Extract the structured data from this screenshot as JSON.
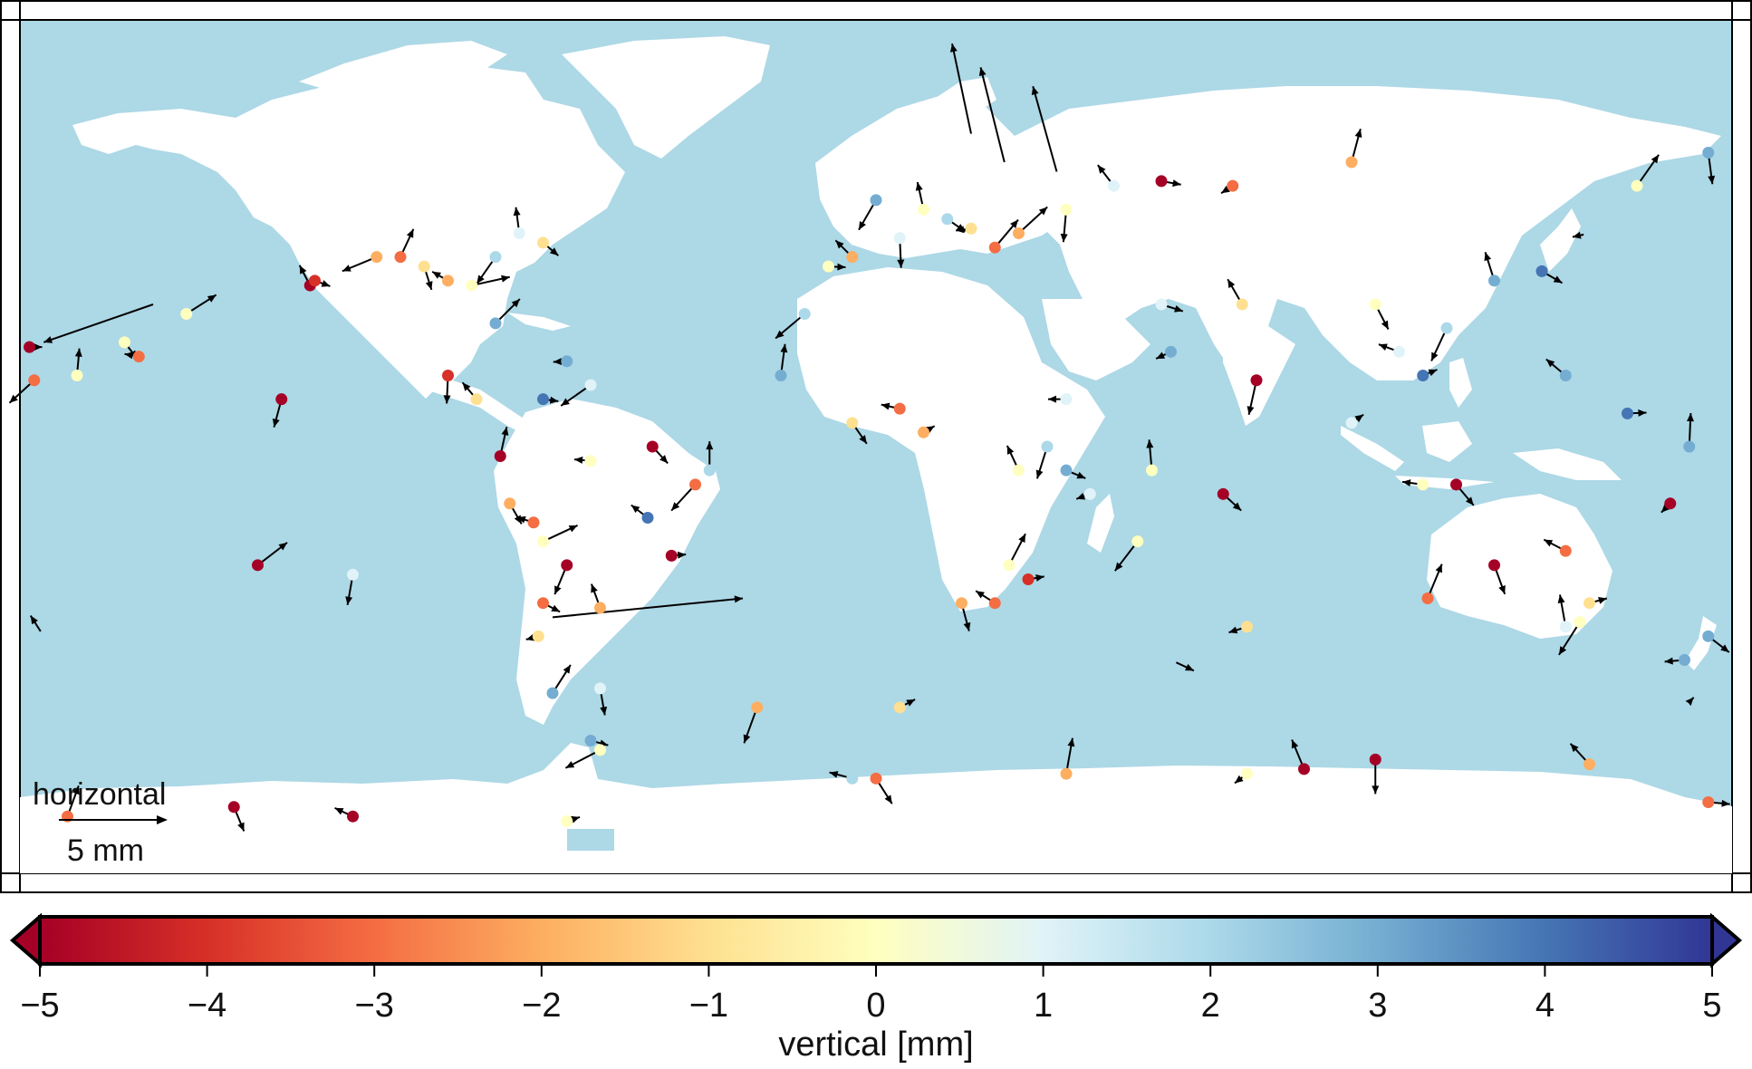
{
  "colors": {
    "ocean": "#add8e6",
    "land": "#ffffff",
    "frame": "#000000",
    "arrow": "#000000",
    "colormap": [
      "#a50026",
      "#d73027",
      "#f46d43",
      "#fdae61",
      "#fee090",
      "#ffffbf",
      "#e0f3f8",
      "#abd9e9",
      "#74add1",
      "#4575b4",
      "#313695"
    ]
  },
  "map": {
    "projection": "equidistant cylindrical",
    "lon_range": [
      -180,
      180
    ],
    "lat_range": [
      -90,
      90
    ],
    "scale_label": "horizontal",
    "scale_value": "5 mm",
    "scale_arrow_mm": 5
  },
  "colorbar": {
    "label": "vertical [mm]",
    "range": [
      -5,
      5
    ],
    "ticks": [
      "−5",
      "−4",
      "−3",
      "−2",
      "−1",
      "0",
      "1",
      "2",
      "3",
      "4",
      "5"
    ],
    "tick_values": [
      -5,
      -4,
      -3,
      -2,
      -1,
      0,
      1,
      2,
      3,
      4,
      5
    ],
    "extend": "both"
  },
  "chart_data": {
    "type": "scatter",
    "description": "GNSS station velocities: colored dots = vertical component, arrows = horizontal component",
    "x_label": "",
    "y_label": "",
    "series": [
      {
        "name": "vertical [mm]",
        "points": [
          [
            -178,
            21,
            -5
          ],
          [
            -177,
            14,
            -3
          ],
          [
            -168,
            15,
            0
          ],
          [
            -158,
            22,
            0
          ],
          [
            -155,
            19,
            -3
          ],
          [
            -145,
            28,
            0
          ],
          [
            -125,
            10,
            -5
          ],
          [
            -119,
            34,
            -5
          ],
          [
            -118,
            35,
            -4
          ],
          [
            -105,
            40,
            -2
          ],
          [
            -100,
            40,
            -3
          ],
          [
            -95,
            38,
            -1
          ],
          [
            -90,
            35,
            -2
          ],
          [
            -85,
            34,
            0
          ],
          [
            -80,
            40,
            2
          ],
          [
            -75,
            45,
            1
          ],
          [
            -70,
            43,
            -1
          ],
          [
            -65,
            18,
            3
          ],
          [
            -80,
            26,
            3
          ],
          [
            -90,
            15,
            -4
          ],
          [
            -84,
            10,
            -1
          ],
          [
            -70,
            10,
            4
          ],
          [
            -60,
            13,
            1
          ],
          [
            -79,
            -2,
            -5
          ],
          [
            -77,
            -12,
            -2
          ],
          [
            -72,
            -16,
            -3
          ],
          [
            -70,
            -20,
            0
          ],
          [
            -65,
            -25,
            -5
          ],
          [
            -58,
            -34,
            -2
          ],
          [
            -70,
            -33,
            -3
          ],
          [
            -71,
            -40,
            -1
          ],
          [
            -68,
            -52,
            3
          ],
          [
            -58,
            -51,
            1
          ],
          [
            -48,
            -15,
            4
          ],
          [
            -43,
            -23,
            -5
          ],
          [
            -38,
            -8,
            -3
          ],
          [
            -35,
            -5,
            2
          ],
          [
            -47,
            0,
            -5
          ],
          [
            -60,
            -3,
            0
          ],
          [
            -130,
            -25,
            -5
          ],
          [
            -110,
            -27,
            1
          ],
          [
            -175,
            -40,
            2
          ],
          [
            -60,
            -62,
            3
          ],
          [
            -58,
            -64,
            0
          ],
          [
            -170,
            -78,
            -3
          ],
          [
            -135,
            -76,
            -5
          ],
          [
            -110,
            -78,
            -5
          ],
          [
            -65,
            -79,
            0
          ],
          [
            0,
            52,
            3
          ],
          [
            10,
            50,
            0
          ],
          [
            15,
            48,
            2
          ],
          [
            20,
            46,
            -1
          ],
          [
            25,
            42,
            -3
          ],
          [
            5,
            44,
            1
          ],
          [
            -5,
            40,
            -2
          ],
          [
            -10,
            38,
            0
          ],
          [
            -15,
            28,
            2
          ],
          [
            -20,
            15,
            3
          ],
          [
            -5,
            5,
            -1
          ],
          [
            5,
            8,
            -3
          ],
          [
            10,
            3,
            -2
          ],
          [
            36,
            0,
            2
          ],
          [
            30,
            -5,
            0
          ],
          [
            40,
            -5,
            3
          ],
          [
            45,
            -10,
            1
          ],
          [
            28,
            -25,
            0
          ],
          [
            18,
            -33,
            -2
          ],
          [
            25,
            -33,
            -3
          ],
          [
            32,
            -28,
            -4
          ],
          [
            55,
            -20,
            0
          ],
          [
            58,
            -5,
            0
          ],
          [
            73,
            -10,
            -5
          ],
          [
            40,
            10,
            1
          ],
          [
            30,
            45,
            -2
          ],
          [
            40,
            50,
            0
          ],
          [
            50,
            55,
            1
          ],
          [
            60,
            56,
            -5
          ],
          [
            75,
            55,
            -3
          ],
          [
            100,
            60,
            -2
          ],
          [
            105,
            30,
            0
          ],
          [
            110,
            20,
            1
          ],
          [
            115,
            15,
            4
          ],
          [
            120,
            25,
            2
          ],
          [
            130,
            35,
            3
          ],
          [
            140,
            37,
            4
          ],
          [
            150,
            45,
            2
          ],
          [
            160,
            55,
            0
          ],
          [
            175,
            62,
            3
          ],
          [
            145,
            15,
            3
          ],
          [
            158,
            7,
            4
          ],
          [
            167,
            -12,
            -5
          ],
          [
            171,
            0,
            3
          ],
          [
            122,
            -8,
            -5
          ],
          [
            115,
            -8,
            0
          ],
          [
            100,
            5,
            1
          ],
          [
            80,
            14,
            -5
          ],
          [
            77,
            30,
            -1
          ],
          [
            60,
            30,
            1
          ],
          [
            62,
            20,
            3
          ],
          [
            116,
            -32,
            -3
          ],
          [
            130,
            -25,
            -5
          ],
          [
            145,
            -22,
            -3
          ],
          [
            150,
            -33,
            -1
          ],
          [
            148,
            -37,
            0
          ],
          [
            145,
            -38,
            1
          ],
          [
            175,
            -40,
            3
          ],
          [
            170,
            -45,
            3
          ],
          [
            170,
            -55,
            2
          ],
          [
            105,
            -66,
            -5
          ],
          [
            150,
            -67,
            -2
          ],
          [
            175,
            -75,
            -3
          ],
          [
            78,
            -69,
            0
          ],
          [
            40,
            -69,
            -2
          ],
          [
            0,
            -70,
            -3
          ],
          [
            -5,
            -70,
            2
          ],
          [
            5,
            -55,
            -1
          ],
          [
            -25,
            -55,
            -2
          ],
          [
            90,
            -68,
            -5
          ],
          [
            62,
            -45,
            2
          ],
          [
            78,
            -38,
            -1
          ]
        ]
      }
    ]
  }
}
